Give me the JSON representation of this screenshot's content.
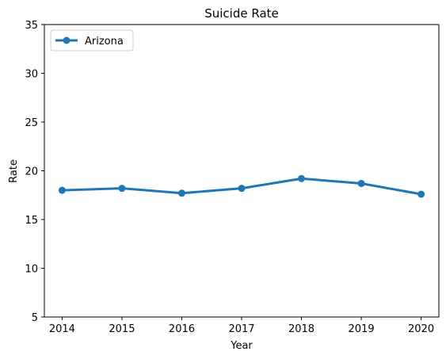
{
  "chart_data": {
    "type": "line",
    "title": "Suicide Rate",
    "xlabel": "Year",
    "ylabel": "Rate",
    "categories": [
      "2014",
      "2015",
      "2016",
      "2017",
      "2018",
      "2019",
      "2020"
    ],
    "x": [
      2014,
      2015,
      2016,
      2017,
      2018,
      2019,
      2020
    ],
    "ylim": [
      5,
      35
    ],
    "yticks": [
      5,
      10,
      15,
      20,
      25,
      30,
      35
    ],
    "grid": false,
    "legend_position": "top-left",
    "series": [
      {
        "name": "Arizona",
        "values": [
          18.0,
          18.2,
          17.7,
          18.2,
          19.2,
          18.7,
          17.6
        ],
        "color": "#1f77b4",
        "marker": "circle"
      }
    ]
  }
}
